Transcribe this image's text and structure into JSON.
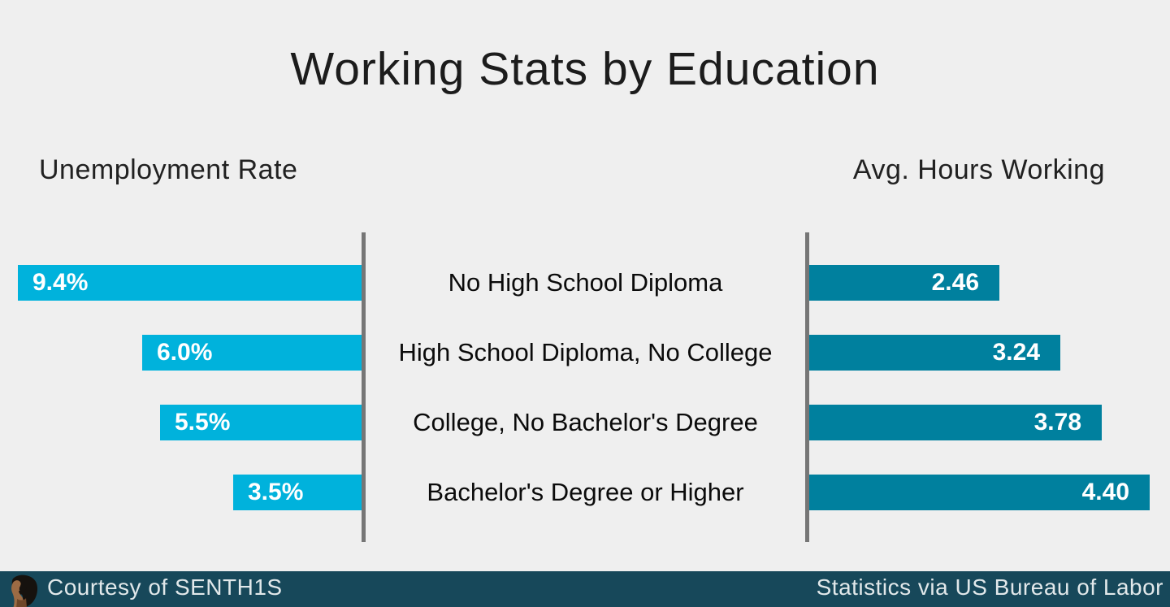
{
  "title": "Working Stats by Education",
  "section_headers": {
    "left": "Unemployment Rate",
    "right": "Avg. Hours Working"
  },
  "colors": {
    "background": "#EFEFEF",
    "left_bar": "#00B2DC",
    "right_bar": "#00809E",
    "axis_line": "#767676",
    "bar_label_text": "#FFFFFF",
    "category_text": "#0B0B0B",
    "footer_background": "#17485A",
    "footer_text": "#E1E8EA",
    "title_text": "#1C1C1C"
  },
  "footer": {
    "left_text": "Courtesy of SENTH1S",
    "right_text": "Statistics via US Bureau of Labor",
    "avatar_icon": "person-profile-avatar"
  },
  "chart_data": {
    "type": "bar",
    "variant": "diverging-butterfly-horizontal",
    "title": "Working Stats by Education",
    "grid": false,
    "legend": "none",
    "categories": [
      "No High School Diploma",
      "High School Diploma, No College",
      "College, No Bachelor's Degree",
      "Bachelor's Degree or Higher"
    ],
    "series": [
      {
        "name": "Unemployment Rate",
        "side": "left",
        "values": [
          9.4,
          6.0,
          5.5,
          3.5
        ],
        "labels": [
          "9.4%",
          "6.0%",
          "5.5%",
          "3.5%"
        ],
        "color": "#00B2DC",
        "axis_range": [
          0,
          9.4
        ]
      },
      {
        "name": "Avg. Hours Working",
        "side": "right",
        "values": [
          2.46,
          3.24,
          3.78,
          4.4
        ],
        "labels": [
          "2.46",
          "3.24",
          "3.78",
          "4.40"
        ],
        "color": "#00809E",
        "axis_range": [
          0,
          4.4
        ]
      }
    ]
  }
}
